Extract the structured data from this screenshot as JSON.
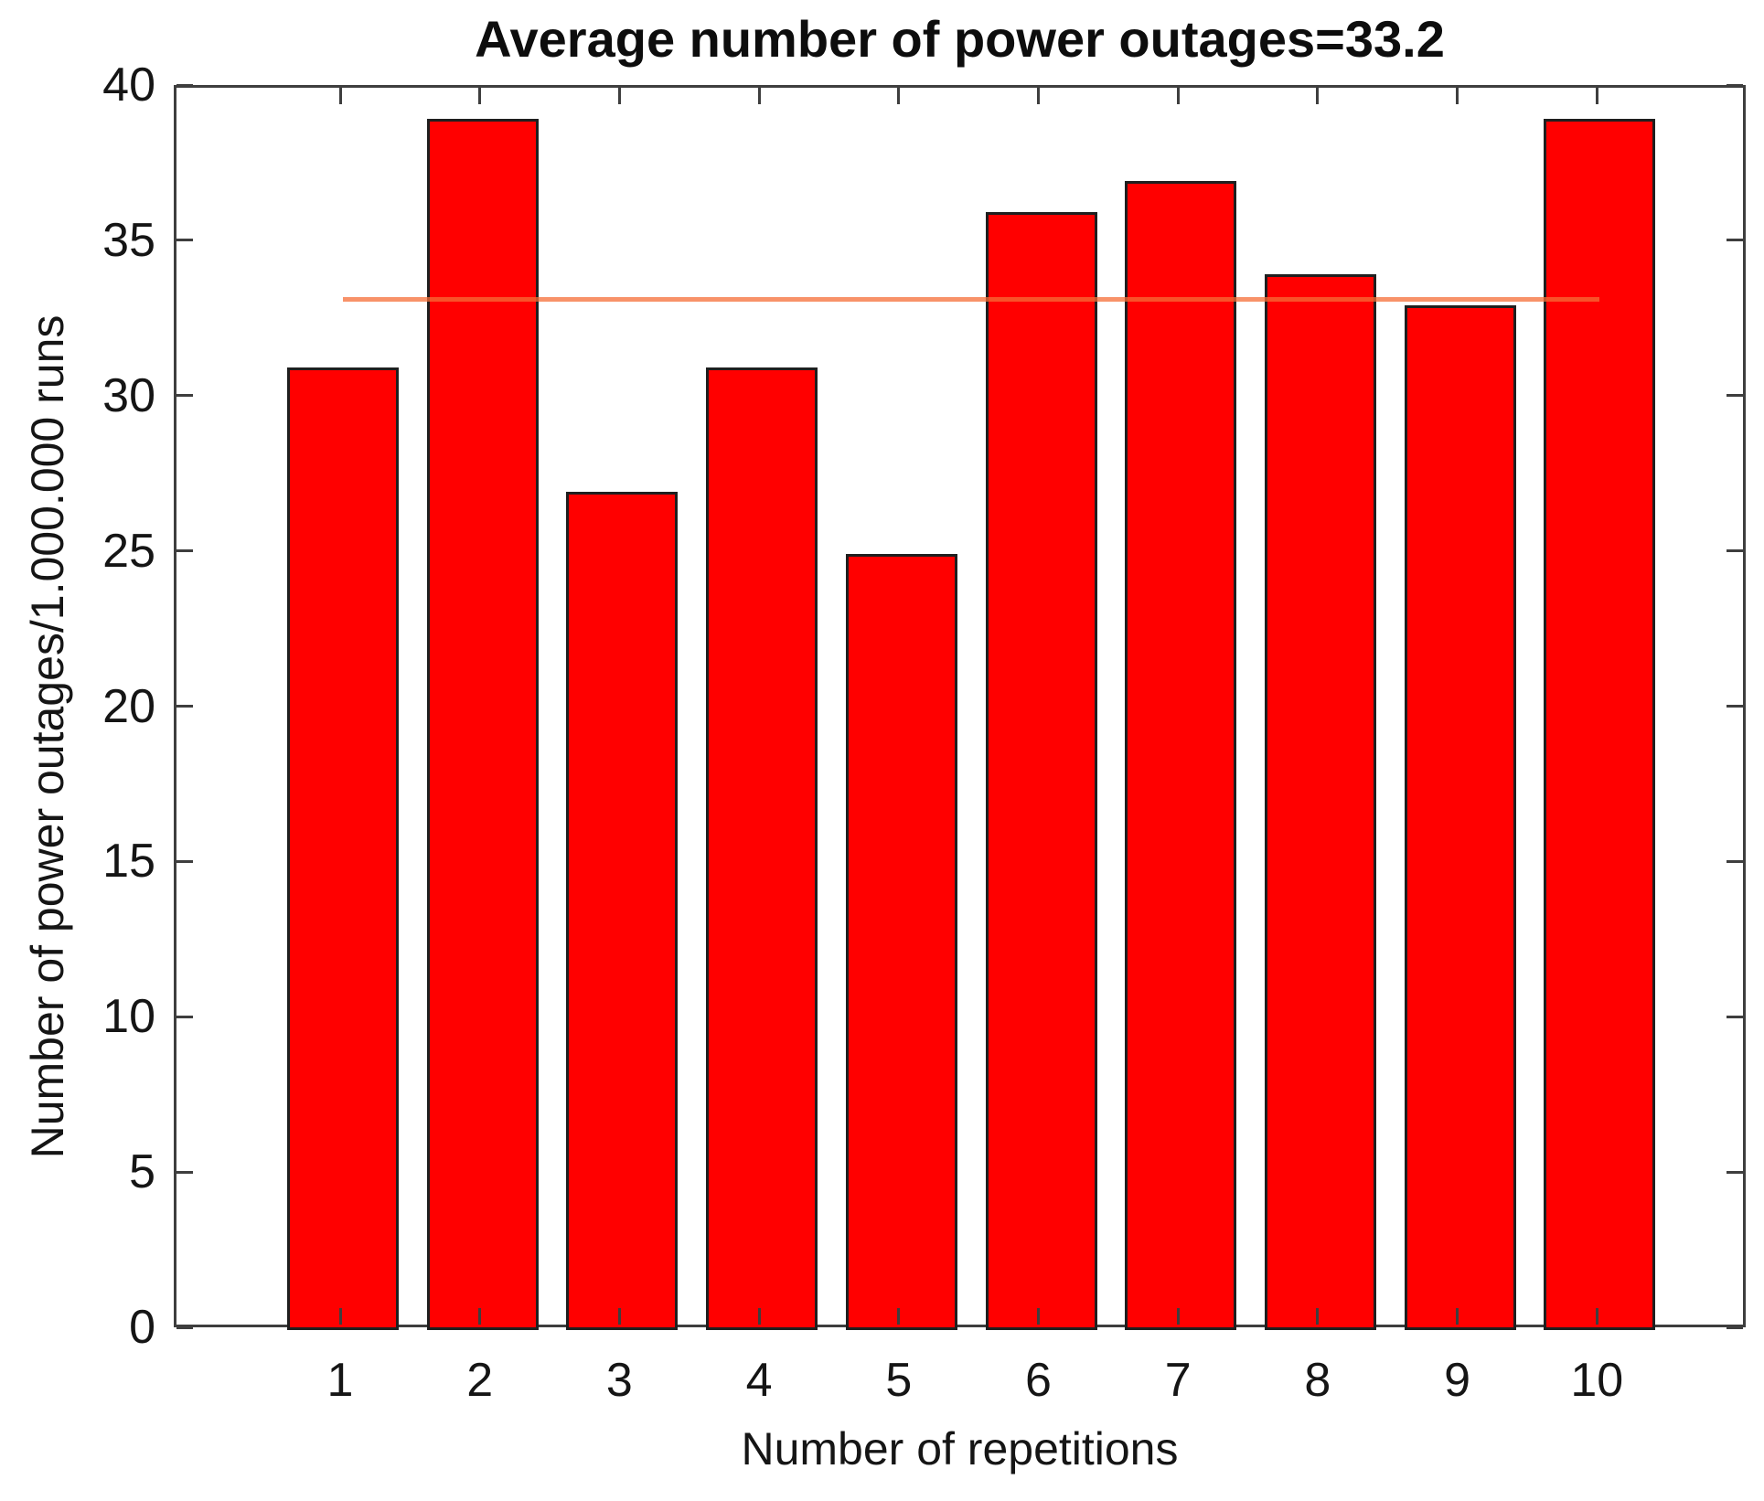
{
  "chart_data": {
    "type": "bar",
    "title": "Average number of power outages=33.2",
    "xlabel": "Number of repetitions",
    "ylabel": "Number of power outages/1.000.000 runs",
    "categories": [
      1,
      2,
      3,
      4,
      5,
      6,
      7,
      8,
      9,
      10
    ],
    "values": [
      31,
      39,
      27,
      31,
      25,
      36,
      37,
      34,
      33,
      39
    ],
    "average_value": 33.2,
    "mean_line": {
      "value": 33.2,
      "x_start": 1,
      "x_end": 10,
      "color": "rgba(245,110,55,0.75)"
    },
    "ylim": [
      0,
      40
    ],
    "yticks": [
      0,
      5,
      10,
      15,
      20,
      25,
      30,
      35,
      40
    ],
    "grid": "off",
    "legend": "none",
    "bar_color": "#ff0000",
    "bar_edge_color": "#1f1f1f",
    "axis_color": "#3e3e3e",
    "text_color": "#151515"
  }
}
